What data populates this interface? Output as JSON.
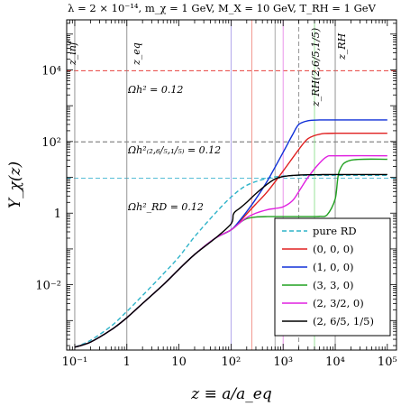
{
  "chart_data": {
    "type": "line",
    "title": "λ = 2 × 10⁻¹⁴, m_χ = 1 GeV, M_X = 10 GeV, T_RH = 1 GeV",
    "xlabel": "z ≡ a/a_eq",
    "ylabel": "Y_χ(z)",
    "xscale": "log",
    "yscale": "log",
    "xlim": [
      0.07,
      150000
    ],
    "ylim": [
      0.00015,
      250000
    ],
    "x_ticks": [
      {
        "v": 0.1,
        "label": "10⁻¹"
      },
      {
        "v": 1,
        "label": "1"
      },
      {
        "v": 10,
        "label": "10"
      },
      {
        "v": 100,
        "label": "10²"
      },
      {
        "v": 1000,
        "label": "10³"
      },
      {
        "v": 10000,
        "label": "10⁴"
      },
      {
        "v": 100000,
        "label": "10⁵"
      }
    ],
    "y_ticks": [
      {
        "v": 0.01,
        "label": "10⁻²"
      },
      {
        "v": 1,
        "label": "1"
      },
      {
        "v": 100,
        "label": "10²"
      },
      {
        "v": 10000,
        "label": "10⁴"
      }
    ],
    "grid": false,
    "legend_position": "bottom-right",
    "hlines": [
      {
        "y": 9500,
        "color": "#e8413c",
        "label": "Ωh² = 0.12"
      },
      {
        "y": 98,
        "color": "#555555",
        "label": "Ωh²₍₂,₆/₅,₁/₅₎ = 0.12"
      },
      {
        "y": 9.5,
        "color": "#3fb5d0",
        "label": "Ωh²_RD = 0.12"
      }
    ],
    "vlines": [
      {
        "x": 0.1,
        "color": "#888888",
        "label": "z_inf"
      },
      {
        "x": 1,
        "color": "#888888",
        "label": "z_eq"
      },
      {
        "x": 2000,
        "color": "#888888",
        "dashed": true,
        "label": "z_RH(2,6/5,1/5)"
      },
      {
        "x": 10000,
        "color": "#888888",
        "label": "z_RH"
      },
      {
        "x": 100,
        "color": "#a89ce8",
        "label": ""
      },
      {
        "x": 250,
        "color": "#f08a80",
        "label": ""
      },
      {
        "x": 700,
        "color": "#a0a0a0",
        "label": ""
      },
      {
        "x": 1000,
        "color": "#e88ae8",
        "label": ""
      },
      {
        "x": 4000,
        "color": "#8ee08e",
        "label": ""
      }
    ],
    "series": [
      {
        "name": "pure RD",
        "color": "#2eb3c9",
        "dashed": true,
        "x": [
          0.1,
          0.2,
          0.5,
          1,
          2,
          5,
          10,
          20,
          50,
          100,
          200,
          500,
          1000,
          2000,
          5000,
          10000,
          100000
        ],
        "y": [
          0.00018,
          0.00028,
          0.0007,
          0.0018,
          0.005,
          0.02,
          0.06,
          0.22,
          1.0,
          2.8,
          6.0,
          9.4,
          10.8,
          11.3,
          11.4,
          11.4,
          11.4
        ]
      },
      {
        "name": "(0, 0, 0)",
        "color": "#e02020",
        "x": [
          0.1,
          0.2,
          0.5,
          1,
          2,
          5,
          10,
          20,
          50,
          100,
          150,
          200,
          300,
          500,
          1000,
          2000,
          3000,
          5000,
          10000,
          100000
        ],
        "y": [
          0.00018,
          0.00025,
          0.00055,
          0.0012,
          0.003,
          0.01,
          0.027,
          0.07,
          0.2,
          0.34,
          0.6,
          0.95,
          1.8,
          4.0,
          15,
          60,
          120,
          160,
          170,
          170
        ]
      },
      {
        "name": "(1, 0, 0)",
        "color": "#1030d8",
        "x": [
          0.1,
          0.2,
          0.5,
          1,
          2,
          5,
          10,
          20,
          50,
          100,
          150,
          200,
          300,
          500,
          1000,
          1500,
          2000,
          3000,
          5000,
          10000,
          100000
        ],
        "y": [
          0.00018,
          0.00025,
          0.00055,
          0.0012,
          0.003,
          0.01,
          0.027,
          0.07,
          0.2,
          0.34,
          0.65,
          1.1,
          2.5,
          8.0,
          50,
          150,
          300,
          380,
          400,
          400,
          400
        ]
      },
      {
        "name": "(3, 3, 0)",
        "color": "#20a020",
        "x": [
          0.1,
          0.2,
          0.5,
          1,
          2,
          5,
          10,
          20,
          50,
          100,
          150,
          200,
          300,
          500,
          700,
          1000,
          2000,
          3000,
          5000,
          7000,
          10000,
          12000,
          20000,
          100000
        ],
        "y": [
          0.00018,
          0.00025,
          0.00055,
          0.0012,
          0.003,
          0.01,
          0.027,
          0.07,
          0.2,
          0.34,
          0.55,
          0.7,
          0.78,
          0.8,
          0.8,
          0.8,
          0.8,
          0.8,
          0.81,
          0.9,
          2.5,
          15,
          30,
          32
        ]
      },
      {
        "name": "(2, 3/2, 0)",
        "color": "#e020e0",
        "x": [
          0.1,
          0.2,
          0.5,
          1,
          2,
          5,
          10,
          20,
          50,
          100,
          150,
          200,
          300,
          500,
          700,
          1000,
          1500,
          2000,
          3000,
          5000,
          7000,
          10000,
          100000
        ],
        "y": [
          0.00018,
          0.00025,
          0.00055,
          0.0012,
          0.003,
          0.01,
          0.027,
          0.07,
          0.2,
          0.34,
          0.55,
          0.75,
          1.0,
          1.25,
          1.35,
          1.5,
          2.2,
          4.0,
          10,
          25,
          38,
          40,
          40
        ]
      },
      {
        "name": "(2, 6/5, 1/5)",
        "color": "#000000",
        "x": [
          0.1,
          0.2,
          0.5,
          1,
          2,
          5,
          10,
          20,
          50,
          100,
          110,
          120,
          150,
          200,
          300,
          500,
          700,
          1000,
          1500,
          2000,
          3000,
          5000,
          10000,
          100000
        ],
        "y": [
          0.00018,
          0.00025,
          0.00055,
          0.0012,
          0.003,
          0.01,
          0.027,
          0.07,
          0.2,
          0.5,
          0.9,
          1.1,
          1.4,
          2.0,
          3.5,
          6.5,
          9.0,
          10.5,
          11.3,
          11.6,
          11.8,
          11.9,
          12,
          12
        ]
      }
    ]
  }
}
